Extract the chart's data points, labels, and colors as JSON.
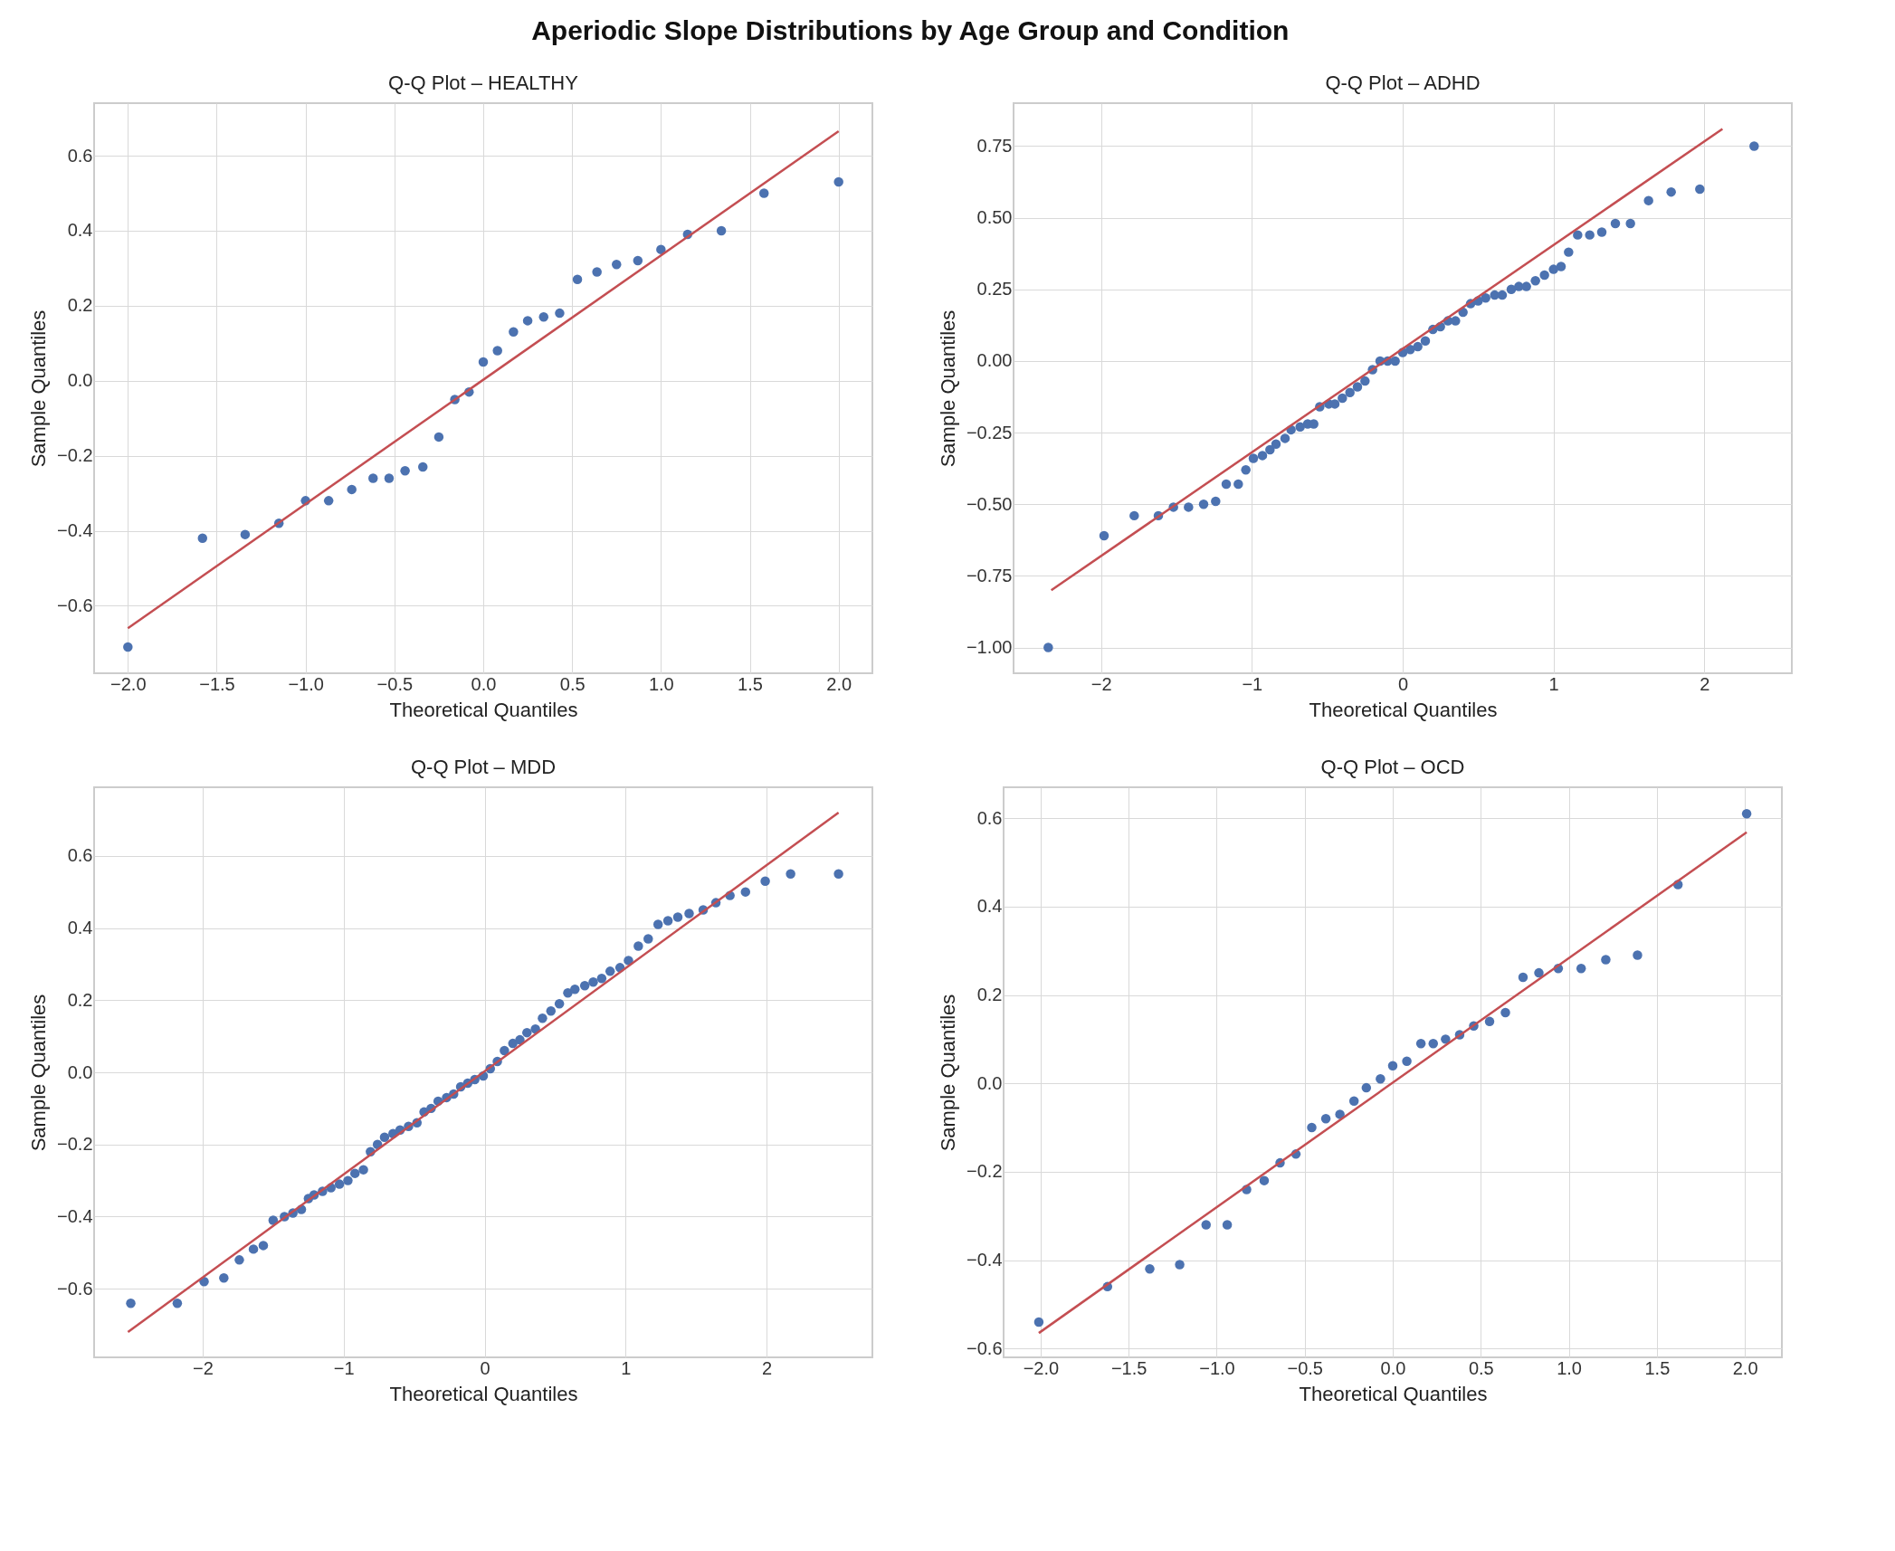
{
  "chart_data": [
    {
      "type": "scatter",
      "title": "Q-Q Plot – HEALTHY",
      "xlabel": "Theoretical Quantiles",
      "ylabel": "Sample Quantiles",
      "annotations": [
        "Aperiodic Slope Distributions by Age Group and Condition"
      ],
      "grid": true,
      "xlim": [
        -2.19,
        2.19
      ],
      "ylim": [
        -0.78,
        0.74
      ],
      "xticks": [
        {
          "value": -2,
          "label": "−2.0"
        },
        {
          "value": -1.5,
          "label": "−1.5"
        },
        {
          "value": -1,
          "label": "−1.0"
        },
        {
          "value": -0.5,
          "label": "−0.5"
        },
        {
          "value": 0,
          "label": "0.0"
        },
        0.5,
        {
          "value": 1,
          "label": "1.0"
        },
        1.5,
        {
          "value": 2,
          "label": "2.0"
        }
      ],
      "yticks": [
        {
          "value": -0.6,
          "label": "−0.6"
        },
        {
          "value": -0.4,
          "label": "−0.4"
        },
        {
          "value": -0.2,
          "label": "−0.2"
        },
        {
          "value": 0,
          "label": "0.0"
        },
        0.2,
        0.4,
        0.6
      ],
      "series": [
        {
          "marker": "circle",
          "color": "#4c72b0",
          "x": [
            -2.0,
            -1.58,
            -1.34,
            -1.15,
            -1.0,
            -0.87,
            -0.74,
            -0.62,
            -0.53,
            -0.44,
            -0.34,
            -0.25,
            -0.16,
            -0.08,
            0.0,
            0.08,
            0.17,
            0.25,
            0.34,
            0.43,
            0.53,
            0.64,
            0.75,
            0.87,
            1.0,
            1.15,
            1.34,
            1.58,
            2.0
          ],
          "values": [
            -0.71,
            -0.42,
            -0.41,
            -0.38,
            -0.32,
            -0.32,
            -0.29,
            -0.26,
            -0.26,
            -0.24,
            -0.23,
            -0.15,
            -0.05,
            -0.03,
            0.05,
            0.08,
            0.13,
            0.16,
            0.17,
            0.18,
            0.27,
            0.29,
            0.31,
            0.32,
            0.35,
            0.39,
            0.4,
            0.5,
            0.53
          ]
        },
        {
          "type": "line",
          "color": "#c44e52",
          "x": [
            -2.0,
            2.0
          ],
          "values": [
            -0.66,
            0.665
          ]
        }
      ]
    },
    {
      "type": "scatter",
      "title": "Q-Q Plot – ADHD",
      "xlabel": "Theoretical Quantiles",
      "ylabel": "Sample Quantiles",
      "grid": true,
      "xlim": [
        -2.58,
        2.58
      ],
      "ylim": [
        -1.09,
        0.9
      ],
      "xticks": [
        {
          "value": -2,
          "label": "−2"
        },
        {
          "value": -1,
          "label": "−1"
        },
        0,
        1,
        2
      ],
      "yticks": [
        {
          "value": -1,
          "label": "−1.00"
        },
        {
          "value": -0.75,
          "label": "−0.75"
        },
        {
          "value": -0.5,
          "label": "−0.50"
        },
        {
          "value": -0.25,
          "label": "−0.25"
        },
        {
          "value": 0,
          "label": "0.00"
        },
        0.25,
        {
          "value": 0.5,
          "label": "0.50"
        },
        0.75
      ],
      "series": [
        {
          "marker": "circle",
          "color": "#4c72b0",
          "x": [
            -2.35,
            -1.98,
            -1.78,
            -1.62,
            -1.52,
            -1.42,
            -1.32,
            -1.24,
            -1.17,
            -1.09,
            -1.04,
            -0.99,
            -0.93,
            -0.88,
            -0.84,
            -0.78,
            -0.74,
            -0.68,
            -0.63,
            -0.59,
            -0.55,
            -0.49,
            -0.45,
            -0.4,
            -0.35,
            -0.3,
            -0.25,
            -0.2,
            -0.15,
            -0.1,
            -0.05,
            0.0,
            0.05,
            0.1,
            0.15,
            0.2,
            0.25,
            0.3,
            0.35,
            0.4,
            0.45,
            0.5,
            0.55,
            0.61,
            0.66,
            0.72,
            0.77,
            0.82,
            0.88,
            0.94,
            1.0,
            1.05,
            1.1,
            1.16,
            1.24,
            1.32,
            1.41,
            1.51,
            1.63,
            1.78,
            1.97,
            2.33
          ],
          "values": [
            -1.0,
            -0.61,
            -0.54,
            -0.54,
            -0.51,
            -0.51,
            -0.5,
            -0.49,
            -0.43,
            -0.43,
            -0.38,
            -0.34,
            -0.33,
            -0.31,
            -0.29,
            -0.27,
            -0.24,
            -0.23,
            -0.22,
            -0.22,
            -0.16,
            -0.15,
            -0.15,
            -0.13,
            -0.11,
            -0.09,
            -0.07,
            -0.03,
            0.0,
            0.0,
            0.0,
            0.03,
            0.04,
            0.05,
            0.07,
            0.11,
            0.12,
            0.14,
            0.14,
            0.17,
            0.2,
            0.21,
            0.22,
            0.23,
            0.23,
            0.25,
            0.26,
            0.26,
            0.28,
            0.3,
            0.32,
            0.33,
            0.38,
            0.44,
            0.44,
            0.45,
            0.48,
            0.48,
            0.56,
            0.59,
            0.6,
            0.75
          ]
        },
        {
          "type": "line",
          "color": "#c44e52",
          "x": [
            -2.33,
            2.12
          ],
          "values": [
            -0.8,
            0.81
          ]
        }
      ]
    },
    {
      "type": "scatter",
      "title": "Q-Q Plot – MDD",
      "xlabel": "Theoretical Quantiles",
      "ylabel": "Sample Quantiles",
      "grid": true,
      "xlim": [
        -2.77,
        2.75
      ],
      "ylim": [
        -0.79,
        0.79
      ],
      "xticks": [
        {
          "value": -2,
          "label": "−2"
        },
        {
          "value": -1,
          "label": "−1"
        },
        0,
        1,
        2
      ],
      "yticks": [
        {
          "value": -0.6,
          "label": "−0.6"
        },
        {
          "value": -0.4,
          "label": "−0.4"
        },
        {
          "value": -0.2,
          "label": "−0.2"
        },
        {
          "value": 0,
          "label": "0.0"
        },
        0.2,
        0.4,
        0.6
      ],
      "series": [
        {
          "marker": "circle",
          "color": "#4c72b0",
          "x": [
            -2.51,
            -2.18,
            -1.99,
            -1.85,
            -1.74,
            -1.64,
            -1.57,
            -1.5,
            -1.42,
            -1.36,
            -1.3,
            -1.25,
            -1.21,
            -1.15,
            -1.09,
            -1.03,
            -0.97,
            -0.92,
            -0.86,
            -0.81,
            -0.76,
            -0.71,
            -0.65,
            -0.6,
            -0.54,
            -0.48,
            -0.43,
            -0.38,
            -0.33,
            -0.27,
            -0.22,
            -0.17,
            -0.12,
            -0.07,
            -0.01,
            0.04,
            0.09,
            0.14,
            0.2,
            0.25,
            0.3,
            0.36,
            0.41,
            0.47,
            0.53,
            0.59,
            0.64,
            0.71,
            0.77,
            0.83,
            0.89,
            0.96,
            1.02,
            1.09,
            1.16,
            1.23,
            1.3,
            1.37,
            1.45,
            1.55,
            1.64,
            1.74,
            1.85,
            1.99,
            2.17,
            2.51
          ],
          "values": [
            -0.64,
            -0.64,
            -0.58,
            -0.57,
            -0.52,
            -0.49,
            -0.48,
            -0.41,
            -0.4,
            -0.39,
            -0.38,
            -0.35,
            -0.34,
            -0.33,
            -0.32,
            -0.31,
            -0.3,
            -0.28,
            -0.27,
            -0.22,
            -0.2,
            -0.18,
            -0.17,
            -0.16,
            -0.15,
            -0.14,
            -0.11,
            -0.1,
            -0.08,
            -0.07,
            -0.06,
            -0.04,
            -0.03,
            -0.02,
            -0.01,
            0.01,
            0.03,
            0.06,
            0.08,
            0.09,
            0.11,
            0.12,
            0.15,
            0.17,
            0.19,
            0.22,
            0.23,
            0.24,
            0.25,
            0.26,
            0.28,
            0.29,
            0.31,
            0.35,
            0.37,
            0.41,
            0.42,
            0.43,
            0.44,
            0.45,
            0.47,
            0.49,
            0.5,
            0.53,
            0.55,
            0.55
          ]
        },
        {
          "type": "line",
          "color": "#c44e52",
          "x": [
            -2.53,
            2.51
          ],
          "values": [
            -0.72,
            0.72
          ]
        }
      ]
    },
    {
      "type": "scatter",
      "title": "Q-Q Plot – OCD",
      "xlabel": "Theoretical Quantiles",
      "ylabel": "Sample Quantiles",
      "grid": true,
      "xlim": [
        -2.21,
        2.21
      ],
      "ylim": [
        -0.62,
        0.67
      ],
      "xticks": [
        {
          "value": -2,
          "label": "−2.0"
        },
        {
          "value": -1.5,
          "label": "−1.5"
        },
        {
          "value": -1,
          "label": "−1.0"
        },
        {
          "value": -0.5,
          "label": "−0.5"
        },
        {
          "value": 0,
          "label": "0.0"
        },
        0.5,
        {
          "value": 1,
          "label": "1.0"
        },
        1.5,
        {
          "value": 2,
          "label": "2.0"
        }
      ],
      "yticks": [
        {
          "value": -0.6,
          "label": "−0.6"
        },
        {
          "value": -0.4,
          "label": "−0.4"
        },
        {
          "value": -0.2,
          "label": "−0.2"
        },
        {
          "value": 0,
          "label": "0.0"
        },
        0.2,
        0.4,
        0.6
      ],
      "series": [
        {
          "marker": "circle",
          "color": "#4c72b0",
          "x": [
            -2.01,
            -1.62,
            -1.38,
            -1.21,
            -1.06,
            -0.94,
            -0.83,
            -0.73,
            -0.64,
            -0.55,
            -0.46,
            -0.38,
            -0.3,
            -0.22,
            -0.15,
            -0.07,
            0.0,
            0.08,
            0.16,
            0.23,
            0.3,
            0.38,
            0.46,
            0.55,
            0.64,
            0.74,
            0.83,
            0.94,
            1.07,
            1.21,
            1.39,
            1.62,
            2.01
          ],
          "values": [
            -0.54,
            -0.46,
            -0.42,
            -0.41,
            -0.32,
            -0.32,
            -0.24,
            -0.22,
            -0.18,
            -0.16,
            -0.1,
            -0.08,
            -0.07,
            -0.04,
            -0.01,
            0.01,
            0.04,
            0.05,
            0.09,
            0.09,
            0.1,
            0.11,
            0.13,
            0.14,
            0.16,
            0.24,
            0.25,
            0.26,
            0.26,
            0.28,
            0.29,
            0.45,
            0.61
          ]
        },
        {
          "type": "line",
          "color": "#c44e52",
          "x": [
            -2.01,
            2.01
          ],
          "values": [
            -0.565,
            0.568
          ]
        }
      ]
    }
  ]
}
